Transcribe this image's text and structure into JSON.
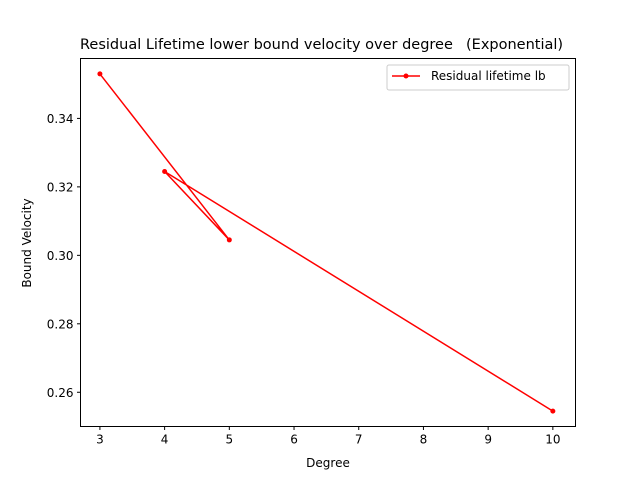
{
  "chart_data": {
    "type": "line",
    "title": "Residual Lifetime lower bound velocity over degree",
    "title_overlay": "(Exponential)",
    "xlabel": "Degree",
    "ylabel": "Bound Velocity",
    "xlim": [
      2.7,
      10.35
    ],
    "ylim": [
      0.25,
      0.3575
    ],
    "x_ticks": [
      3,
      4,
      5,
      6,
      7,
      8,
      9,
      10
    ],
    "y_ticks": [
      0.26,
      0.28,
      0.3,
      0.32,
      0.34
    ],
    "y_tick_labels": [
      "0.26",
      "0.28",
      "0.30",
      "0.32",
      "0.34"
    ],
    "grid": false,
    "legend_position": "top-right",
    "series": [
      {
        "name": "Residual lifetime lb",
        "color": "#ff0000",
        "marker": "point",
        "x": [
          3,
          5,
          4,
          10
        ],
        "y": [
          0.353,
          0.3045,
          0.3245,
          0.2545
        ]
      }
    ]
  }
}
